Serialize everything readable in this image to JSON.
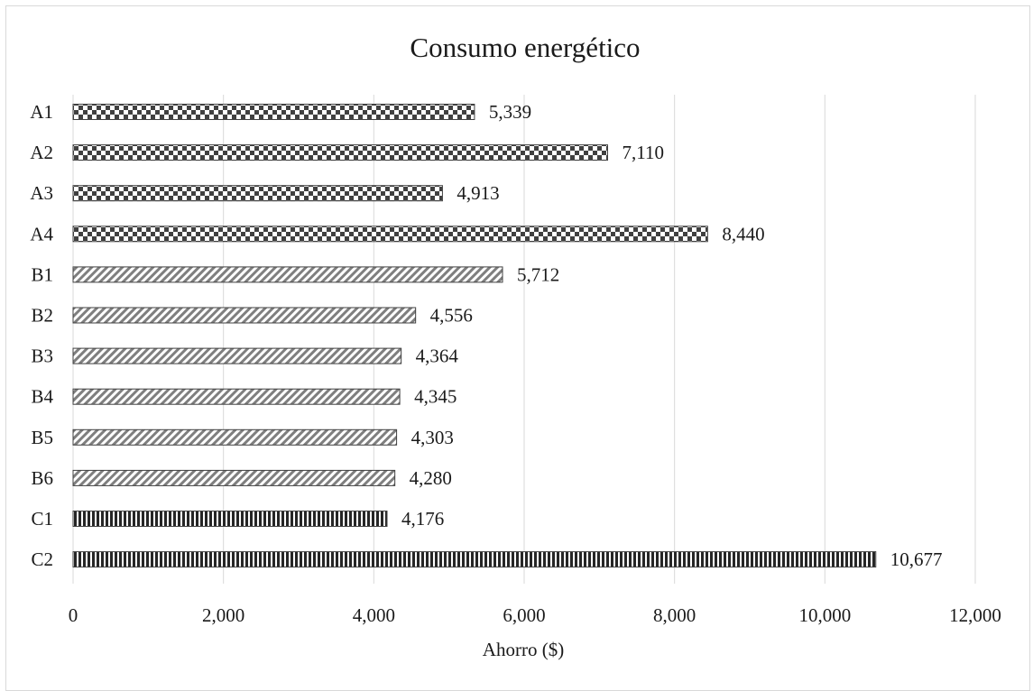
{
  "chart_data": {
    "type": "bar",
    "orientation": "horizontal",
    "title": "Consumo energético",
    "xlabel": "Ahorro ($)",
    "ylabel": "",
    "xlim": [
      0,
      12000
    ],
    "xticks": [
      0,
      2000,
      4000,
      6000,
      8000,
      10000,
      12000
    ],
    "xtick_labels": [
      "0",
      "2,000",
      "4,000",
      "6,000",
      "8,000",
      "10,000",
      "12,000"
    ],
    "grid": true,
    "legend": "none",
    "categories": [
      "A1",
      "A2",
      "A3",
      "A4",
      "B1",
      "B2",
      "B3",
      "B4",
      "B5",
      "B6",
      "C1",
      "C2"
    ],
    "values": [
      5339,
      7110,
      4913,
      8440,
      5712,
      4556,
      4364,
      4345,
      4303,
      4280,
      4176,
      10677
    ],
    "data_labels": [
      "5,339",
      "7,110",
      "4,913",
      "8,440",
      "5,712",
      "4,556",
      "4,364",
      "4,345",
      "4,303",
      "4,280",
      "4,176",
      "10,677"
    ],
    "groups": [
      {
        "categories": [
          "A1",
          "A2",
          "A3",
          "A4"
        ],
        "pattern": "checker",
        "color": "#404040"
      },
      {
        "categories": [
          "B1",
          "B2",
          "B3",
          "B4",
          "B5",
          "B6"
        ],
        "pattern": "diagonal",
        "color": "#7f7f7f"
      },
      {
        "categories": [
          "C1",
          "C2"
        ],
        "pattern": "vertical-stripes",
        "color": "#262626"
      }
    ]
  }
}
